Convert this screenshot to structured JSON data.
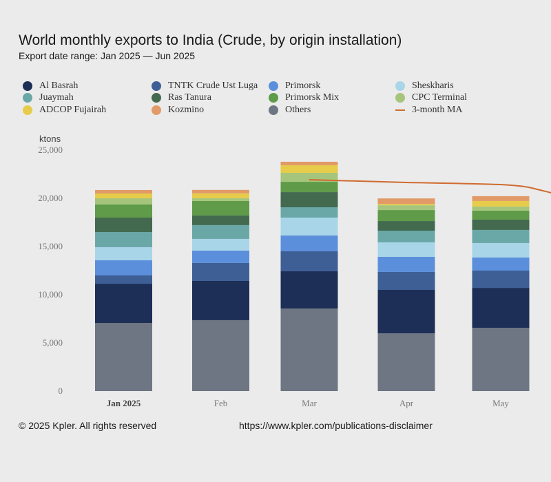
{
  "header": {
    "title": "World monthly exports to India (Crude, by origin installation)",
    "subtitle": "Export date range: Jan 2025 — Jun 2025"
  },
  "footer": {
    "copyright": "© 2025 Kpler. All rights reserved",
    "disclaimer_url": "https://www.kpler.com/publications-disclaimer"
  },
  "chart_data": {
    "type": "bar",
    "stacked": true,
    "title": "World monthly exports to India (Crude, by origin installation)",
    "subtitle": "Export date range: Jan 2025 — Jun 2025",
    "ylabel": "ktons",
    "xlabel": "",
    "ylim": [
      0,
      25000
    ],
    "yticks": [
      0,
      5000,
      10000,
      15000,
      20000,
      25000
    ],
    "ytick_labels": [
      "0",
      "5,000",
      "10,000",
      "15,000",
      "20,000",
      "25,000"
    ],
    "grid": false,
    "legend_position": "top",
    "categories": [
      "Jan 2025",
      "Feb",
      "Mar",
      "Apr",
      "May"
    ],
    "series": [
      {
        "name": "Others",
        "color": "#6e7684",
        "values": [
          7070,
          7360,
          8570,
          6000,
          6570
        ]
      },
      {
        "name": "Al Basrah",
        "color": "#1d2f56",
        "values": [
          4070,
          4070,
          3860,
          4500,
          4140
        ]
      },
      {
        "name": "TNTK Crude Ust Luga",
        "color": "#3d5f95",
        "values": [
          860,
          1860,
          2070,
          1860,
          1790
        ]
      },
      {
        "name": "Primorsk",
        "color": "#5b8fdb",
        "values": [
          1570,
          1290,
          1640,
          1570,
          1360
        ]
      },
      {
        "name": "Sheskharis",
        "color": "#a8d5e8",
        "values": [
          1360,
          1210,
          1860,
          1500,
          1500
        ]
      },
      {
        "name": "Juaymah",
        "color": "#6aa8a8",
        "values": [
          1570,
          1430,
          1070,
          1210,
          1360
        ]
      },
      {
        "name": "Ras Tanura",
        "color": "#436a4f",
        "values": [
          1500,
          1000,
          1570,
          1000,
          1070
        ]
      },
      {
        "name": "Primorsk Mix",
        "color": "#5f9b48",
        "values": [
          1360,
          1500,
          1070,
          1140,
          930
        ]
      },
      {
        "name": "CPC Terminal",
        "color": "#a6c57c",
        "values": [
          640,
          290,
          930,
          500,
          430
        ]
      },
      {
        "name": "ADCOP Fujairah",
        "color": "#e6cc4a",
        "values": [
          500,
          500,
          790,
          140,
          570
        ]
      },
      {
        "name": "Kozmino",
        "color": "#e19a68",
        "values": [
          360,
          360,
          360,
          570,
          500
        ]
      }
    ],
    "moving_average": {
      "name": "3-month MA",
      "color": "#d06a2e",
      "x": [
        "Mar",
        "Apr",
        "May",
        "Jun"
      ],
      "values": [
        21930,
        21640,
        21500,
        19500
      ]
    },
    "legend": [
      {
        "name": "Al Basrah",
        "color": "#1d2f56",
        "marker": "dot"
      },
      {
        "name": "TNTK Crude Ust Luga",
        "color": "#3d5f95",
        "marker": "dot"
      },
      {
        "name": "Primorsk",
        "color": "#5b8fdb",
        "marker": "dot"
      },
      {
        "name": "Sheskharis",
        "color": "#a8d5e8",
        "marker": "dot"
      },
      {
        "name": "Juaymah",
        "color": "#6aa8a8",
        "marker": "dot"
      },
      {
        "name": "Ras Tanura",
        "color": "#436a4f",
        "marker": "dot"
      },
      {
        "name": "Primorsk Mix",
        "color": "#5f9b48",
        "marker": "dot"
      },
      {
        "name": "CPC Terminal",
        "color": "#a6c57c",
        "marker": "dot"
      },
      {
        "name": "ADCOP Fujairah",
        "color": "#e6cc4a",
        "marker": "dot"
      },
      {
        "name": "Kozmino",
        "color": "#e19a68",
        "marker": "dot"
      },
      {
        "name": "Others",
        "color": "#6e7684",
        "marker": "dot"
      },
      {
        "name": "3-month MA",
        "color": "#d06a2e",
        "marker": "line"
      }
    ]
  }
}
